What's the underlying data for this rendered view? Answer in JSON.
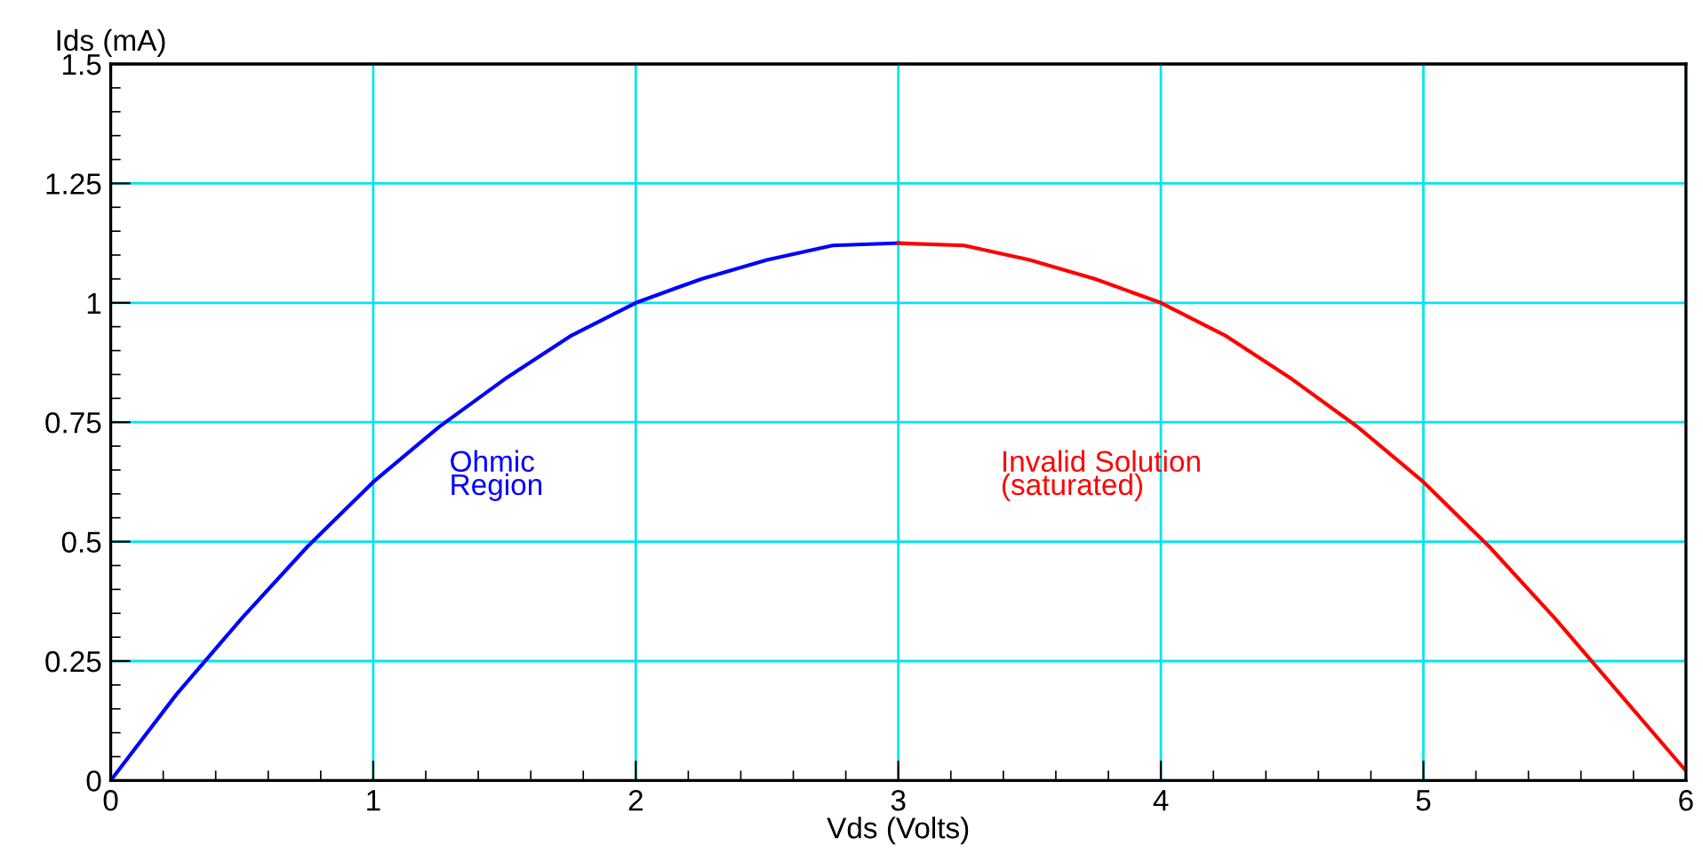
{
  "chart_data": {
    "type": "line",
    "xlabel": "Vds (Volts)",
    "ylabel": "Ids (mA)",
    "series": [
      {
        "color": "#0000ff",
        "x": [
          0,
          0.25,
          0.5,
          0.75,
          1,
          1.25,
          1.5,
          1.75,
          2,
          2.25,
          2.5,
          2.75,
          3
        ],
        "values": [
          0,
          0.18,
          0.34,
          0.49,
          0.625,
          0.74,
          0.84,
          0.93,
          1,
          1.05,
          1.09,
          1.12,
          1.125
        ]
      },
      {
        "color": "#ff0000",
        "x": [
          3,
          3.25,
          3.5,
          3.75,
          4,
          4.25,
          4.5,
          4.75,
          5,
          5.25,
          5.5,
          5.75,
          6
        ],
        "values": [
          1.125,
          1.12,
          1.09,
          1.05,
          1,
          0.93,
          0.84,
          0.74,
          0.625,
          0.49,
          0.34,
          0.18,
          0.02
        ]
      }
    ],
    "annotations": [
      "Ohmic\nRegion",
      "Invalid Solution\n(saturated)"
    ],
    "xlim": [
      0,
      6
    ],
    "xticks": [
      0,
      1,
      2,
      3,
      4,
      5,
      6
    ],
    "ylim": [
      0,
      1.5
    ],
    "yticks": [
      0,
      0.25,
      0.5,
      0.75,
      1,
      1.25,
      1.5
    ],
    "grid": true,
    "marker": "none",
    "line_style": "solid",
    "legend": false
  }
}
